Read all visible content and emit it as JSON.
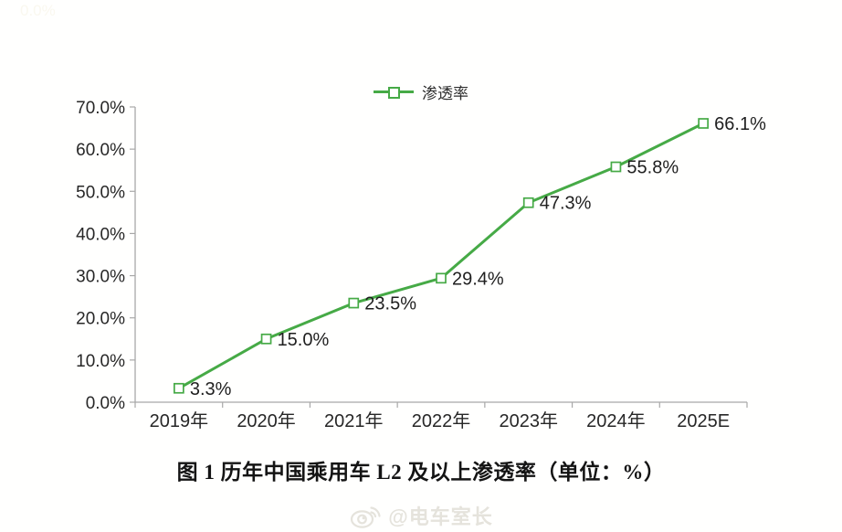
{
  "stray_top_left_label": "0.0%",
  "legend": {
    "label": "渗透率",
    "marker": "open-square-on-line"
  },
  "caption": "图 1 历年中国乘用车 L2 及以上渗透率（单位：%）",
  "watermark": {
    "icon": "weibo-logo",
    "handle": "@电车室长"
  },
  "colors": {
    "line_green": "#46aa46",
    "axis_gray": "#a8a8a8",
    "tick_text": "#272727",
    "data_label_text": "#1f1f1f",
    "background": "#fffffe",
    "watermark_gray": "#e5e3dc"
  },
  "chart_data": {
    "type": "line",
    "title": "图 1 历年中国乘用车 L2 及以上渗透率（单位：%）",
    "categories": [
      "2019年",
      "2020年",
      "2021年",
      "2022年",
      "2023年",
      "2024年",
      "2025E"
    ],
    "series": [
      {
        "name": "渗透率",
        "values": [
          3.3,
          15.0,
          23.5,
          29.4,
          47.3,
          55.8,
          66.1
        ],
        "labels": [
          "3.3%",
          "15.0%",
          "23.5%",
          "29.4%",
          "47.3%",
          "55.8%",
          "66.1%"
        ]
      }
    ],
    "xlabel": "",
    "ylabel": "",
    "ylim": [
      0,
      70
    ],
    "y_tick_labels": [
      "0.0%",
      "10.0%",
      "20.0%",
      "30.0%",
      "40.0%",
      "50.0%",
      "60.0%",
      "70.0%"
    ],
    "y_tick_step": 10,
    "grid": false,
    "legend_position": "top-center",
    "marker": "open-square"
  }
}
